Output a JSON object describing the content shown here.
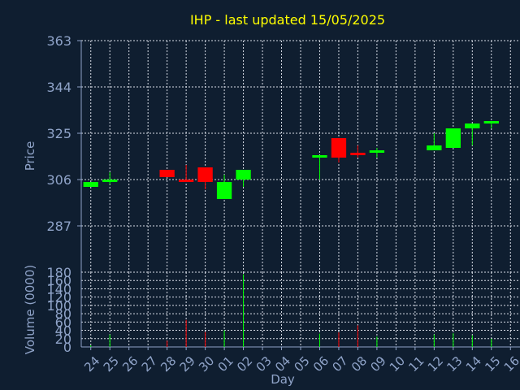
{
  "chart_data": [
    {
      "type": "candlestick",
      "title": "IHP - last updated 15/05/2025",
      "ylabel": "Price",
      "ylim": [
        268,
        363
      ],
      "yticks": [
        287,
        306,
        325,
        344,
        363
      ],
      "grid": true,
      "up_color": "#00ff00",
      "down_color": "#ff0000",
      "categories": [
        "24",
        "25",
        "26",
        "27",
        "28",
        "29",
        "30",
        "01",
        "02",
        "03",
        "04",
        "05",
        "06",
        "07",
        "08",
        "09",
        "10",
        "11",
        "12",
        "13",
        "14",
        "15",
        "16"
      ],
      "candles": [
        {
          "day": "24",
          "open": 303,
          "close": 305,
          "high": 305,
          "low": 303
        },
        {
          "day": "25",
          "open": 305,
          "close": 306,
          "high": 309,
          "low": 304
        },
        {
          "day": "28",
          "open": 310,
          "close": 307,
          "high": 310,
          "low": 307
        },
        {
          "day": "29",
          "open": 306,
          "close": 305,
          "high": 312,
          "low": 305
        },
        {
          "day": "30",
          "open": 311,
          "close": 305,
          "high": 311,
          "low": 302
        },
        {
          "day": "01",
          "open": 298,
          "close": 305,
          "high": 308,
          "low": 298
        },
        {
          "day": "02",
          "open": 306,
          "close": 310,
          "high": 310,
          "low": 303
        },
        {
          "day": "06",
          "open": 315,
          "close": 316,
          "high": 316,
          "low": 306
        },
        {
          "day": "07",
          "open": 323,
          "close": 315,
          "high": 323,
          "low": 313
        },
        {
          "day": "08",
          "open": 317,
          "close": 316,
          "high": 320,
          "low": 315
        },
        {
          "day": "09",
          "open": 317,
          "close": 318,
          "high": 319,
          "low": 315
        },
        {
          "day": "12",
          "open": 318,
          "close": 320,
          "high": 325,
          "low": 318
        },
        {
          "day": "13",
          "open": 319,
          "close": 327,
          "high": 327,
          "low": 319
        },
        {
          "day": "14",
          "open": 327,
          "close": 329,
          "high": 329,
          "low": 320
        },
        {
          "day": "15",
          "open": 329,
          "close": 330,
          "high": 330,
          "low": 327
        }
      ]
    },
    {
      "type": "bar",
      "ylabel": "Volume (0000)",
      "xlabel": "Day",
      "ylim": [
        0,
        180
      ],
      "yticks": [
        0,
        20,
        40,
        60,
        80,
        100,
        120,
        140,
        160,
        180
      ],
      "categories": [
        "24",
        "25",
        "26",
        "27",
        "28",
        "29",
        "30",
        "01",
        "02",
        "03",
        "04",
        "05",
        "06",
        "07",
        "08",
        "09",
        "10",
        "11",
        "12",
        "13",
        "14",
        "15",
        "16"
      ],
      "bars": [
        {
          "day": "24",
          "value": 4,
          "direction": "up"
        },
        {
          "day": "25",
          "value": 30,
          "direction": "up"
        },
        {
          "day": "28",
          "value": 15,
          "direction": "down"
        },
        {
          "day": "29",
          "value": 65,
          "direction": "down"
        },
        {
          "day": "30",
          "value": 36,
          "direction": "down"
        },
        {
          "day": "01",
          "value": 40,
          "direction": "up"
        },
        {
          "day": "02",
          "value": 175,
          "direction": "up"
        },
        {
          "day": "06",
          "value": 32,
          "direction": "up"
        },
        {
          "day": "07",
          "value": 35,
          "direction": "down"
        },
        {
          "day": "08",
          "value": 52,
          "direction": "down"
        },
        {
          "day": "09",
          "value": 25,
          "direction": "up"
        },
        {
          "day": "12",
          "value": 30,
          "direction": "up"
        },
        {
          "day": "13",
          "value": 33,
          "direction": "up"
        },
        {
          "day": "14",
          "value": 28,
          "direction": "up"
        },
        {
          "day": "15",
          "value": 20,
          "direction": "up"
        }
      ]
    }
  ]
}
